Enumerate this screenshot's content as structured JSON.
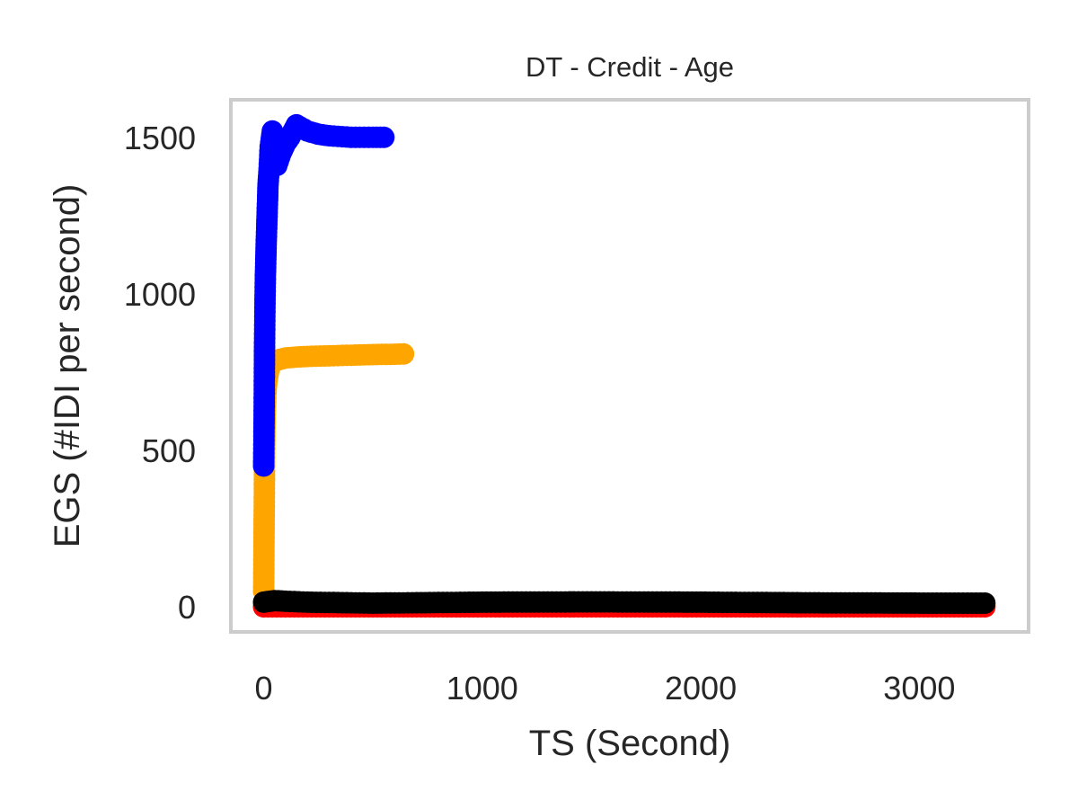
{
  "chart_data": {
    "type": "line",
    "title": "DT - Credit - Age",
    "xlabel": "TS (Second)",
    "ylabel": "EGS (#IDI  per second)",
    "xlim": [
      -150,
      3500
    ],
    "ylim": [
      -80,
      1620
    ],
    "xticks": [
      0,
      1000,
      2000,
      3000
    ],
    "yticks": [
      0,
      500,
      1000,
      1500
    ],
    "grid": false,
    "series": [
      {
        "color": "#ff0000",
        "x": [
          0,
          100,
          500,
          1000,
          1500,
          2000,
          2500,
          3000,
          3300
        ],
        "y": [
          0,
          0,
          0,
          0,
          0,
          0,
          0,
          0,
          0
        ]
      },
      {
        "color": "#ffa500",
        "x": [
          0,
          1,
          2,
          3,
          4,
          5,
          6,
          8,
          10,
          12,
          15,
          18,
          22,
          26,
          30,
          40,
          50,
          70,
          100,
          150,
          200,
          300,
          400,
          500,
          600,
          640
        ],
        "y": [
          50,
          150,
          250,
          350,
          450,
          520,
          580,
          640,
          680,
          700,
          720,
          735,
          750,
          760,
          770,
          780,
          785,
          790,
          795,
          798,
          800,
          802,
          804,
          806,
          807,
          808
        ]
      },
      {
        "color": "#0000ff",
        "x": [
          0,
          2,
          4,
          6,
          8,
          10,
          12,
          14,
          16,
          18,
          20,
          25,
          30,
          40,
          50,
          60,
          80,
          100,
          120,
          150,
          200,
          250,
          300,
          400,
          500,
          550
        ],
        "y": [
          450,
          600,
          830,
          970,
          1060,
          1110,
          1170,
          1210,
          1260,
          1300,
          1350,
          1400,
          1470,
          1520,
          1440,
          1410,
          1450,
          1480,
          1500,
          1540,
          1520,
          1510,
          1505,
          1500,
          1500,
          1500
        ]
      },
      {
        "color": "#000000",
        "x": [
          0,
          50,
          100,
          200,
          500,
          1000,
          1500,
          2000,
          2500,
          3000,
          3300
        ],
        "y": [
          15,
          20,
          18,
          15,
          12,
          15,
          16,
          15,
          13,
          12,
          12
        ]
      }
    ]
  }
}
